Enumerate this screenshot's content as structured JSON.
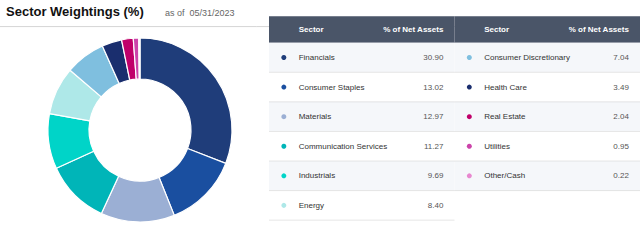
{
  "chart_data": {
    "type": "donut",
    "title": "Sector Weightings (%)",
    "subtitle": "as of  05/31/2023",
    "column_labels": [
      "Sector",
      "% of Net Assets"
    ],
    "categories": [
      "Financials",
      "Consumer Staples",
      "Materials",
      "Communication Services",
      "Industrials",
      "Energy",
      "Consumer Discretionary",
      "Health Care",
      "Real Estate",
      "Utilities",
      "Other/Cash"
    ],
    "values": [
      30.9,
      13.02,
      12.97,
      11.27,
      9.69,
      8.4,
      7.04,
      3.49,
      2.04,
      0.95,
      0.22
    ],
    "value_labels": [
      "30.90",
      "13.02",
      "12.97",
      "11.27",
      "9.69",
      "8.40",
      "7.04",
      "3.49",
      "2.04",
      "0.95",
      "0.22"
    ],
    "colors": [
      "#1f3d7a",
      "#1a4fa0",
      "#9bafd4",
      "#00b5b8",
      "#00d4c8",
      "#aee8e8",
      "#7fbfdf",
      "#1a2e6e",
      "#c0006a",
      "#cc44aa",
      "#e888d0"
    ],
    "legend": "right"
  }
}
